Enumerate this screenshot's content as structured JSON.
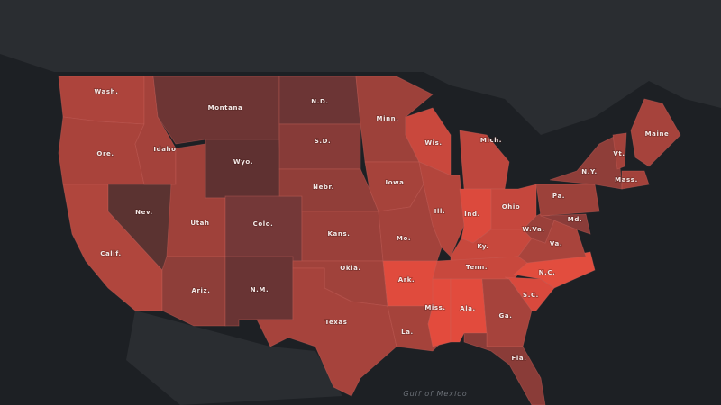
{
  "map": {
    "states": [
      {
        "label": "Wash.",
        "color": "#ad443c"
      },
      {
        "label": "Ore.",
        "color": "#a9433b"
      },
      {
        "label": "Calif.",
        "color": "#b0463d"
      },
      {
        "label": "Nev.",
        "color": "#5b3331"
      },
      {
        "label": "Idaho",
        "color": "#a4423b"
      },
      {
        "label": "Montana",
        "color": "#6d3534"
      },
      {
        "label": "Wyo.",
        "color": "#5f3131"
      },
      {
        "label": "Utah",
        "color": "#9f413a"
      },
      {
        "label": "Colo.",
        "color": "#743838"
      },
      {
        "label": "Ariz.",
        "color": "#8e3e39"
      },
      {
        "label": "N.M.",
        "color": "#693434"
      },
      {
        "label": "N.D.",
        "color": "#6c3535"
      },
      {
        "label": "S.D.",
        "color": "#873b38"
      },
      {
        "label": "Nebr.",
        "color": "#913e39"
      },
      {
        "label": "Kans.",
        "color": "#9a403a"
      },
      {
        "label": "Okla.",
        "color": "#a0423b"
      },
      {
        "label": "Texas",
        "color": "#a6433c"
      },
      {
        "label": "Minn.",
        "color": "#9d413a"
      },
      {
        "label": "Iowa",
        "color": "#a6433b"
      },
      {
        "label": "Mo.",
        "color": "#a3423b"
      },
      {
        "label": "Ark.",
        "color": "#e04b3d"
      },
      {
        "label": "La.",
        "color": "#a5433b"
      },
      {
        "label": "Wis.",
        "color": "#c9483d"
      },
      {
        "label": "Ill.",
        "color": "#b3453c"
      },
      {
        "label": "Mich.",
        "color": "#bd463d"
      },
      {
        "label": "Ind.",
        "color": "#dc4a3d"
      },
      {
        "label": "Ohio",
        "color": "#c5473d"
      },
      {
        "label": "Ky.",
        "color": "#c7483d"
      },
      {
        "label": "Tenn.",
        "color": "#c8483d"
      },
      {
        "label": "Miss.",
        "color": "#e34b3d"
      },
      {
        "label": "Ala.",
        "color": "#e24b3d"
      },
      {
        "label": "Ga.",
        "color": "#a6433c"
      },
      {
        "label": "Fla.",
        "color": "#8a3c38"
      },
      {
        "label": "S.C.",
        "color": "#d9493d"
      },
      {
        "label": "N.C.",
        "color": "#e24d3e"
      },
      {
        "label": "Va.",
        "color": "#a9443c"
      },
      {
        "label": "W.Va.",
        "color": "#9a403a"
      },
      {
        "label": "Pa.",
        "color": "#9c413a"
      },
      {
        "label": "N.Y.",
        "color": "#8f3e39"
      },
      {
        "label": "Md.",
        "color": "#8a3c39"
      },
      {
        "label": "Vt.",
        "color": "#a3423b"
      },
      {
        "label": "Maine",
        "color": "#a6433c"
      },
      {
        "label": "Mass.",
        "color": "#a3423b"
      }
    ],
    "water_label": "Gulf of Mexico"
  }
}
